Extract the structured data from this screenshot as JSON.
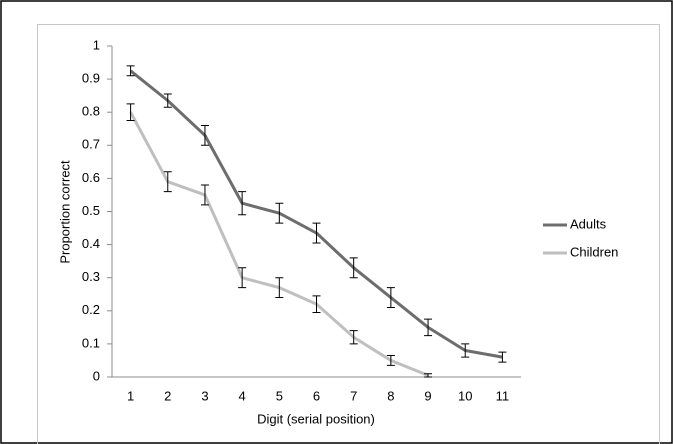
{
  "chart_data": {
    "type": "line",
    "x_label": "Digit (serial position)",
    "y_label": "Proportion correct",
    "categories": [
      "1",
      "2",
      "3",
      "4",
      "5",
      "6",
      "7",
      "8",
      "9",
      "10",
      "11"
    ],
    "series": [
      {
        "name": "Adults",
        "color": "#6d6d6d",
        "values": [
          0.925,
          0.835,
          0.73,
          0.525,
          0.495,
          0.435,
          0.33,
          0.24,
          0.15,
          0.08,
          0.06
        ],
        "errors": [
          0.015,
          0.02,
          0.03,
          0.035,
          0.03,
          0.03,
          0.03,
          0.03,
          0.025,
          0.02,
          0.015
        ]
      },
      {
        "name": "Children",
        "color": "#bfbfbf",
        "values": [
          0.8,
          0.59,
          0.55,
          0.3,
          0.27,
          0.22,
          0.12,
          0.05,
          0.005,
          null,
          null
        ],
        "errors": [
          0.025,
          0.03,
          0.03,
          0.03,
          0.03,
          0.025,
          0.02,
          0.015,
          0.005,
          null,
          null
        ]
      }
    ],
    "ylim": [
      0,
      1
    ],
    "yticks": [
      0,
      0.1,
      0.2,
      0.3,
      0.4,
      0.5,
      0.6,
      0.7,
      0.8,
      0.9,
      1
    ],
    "legend": "right"
  }
}
